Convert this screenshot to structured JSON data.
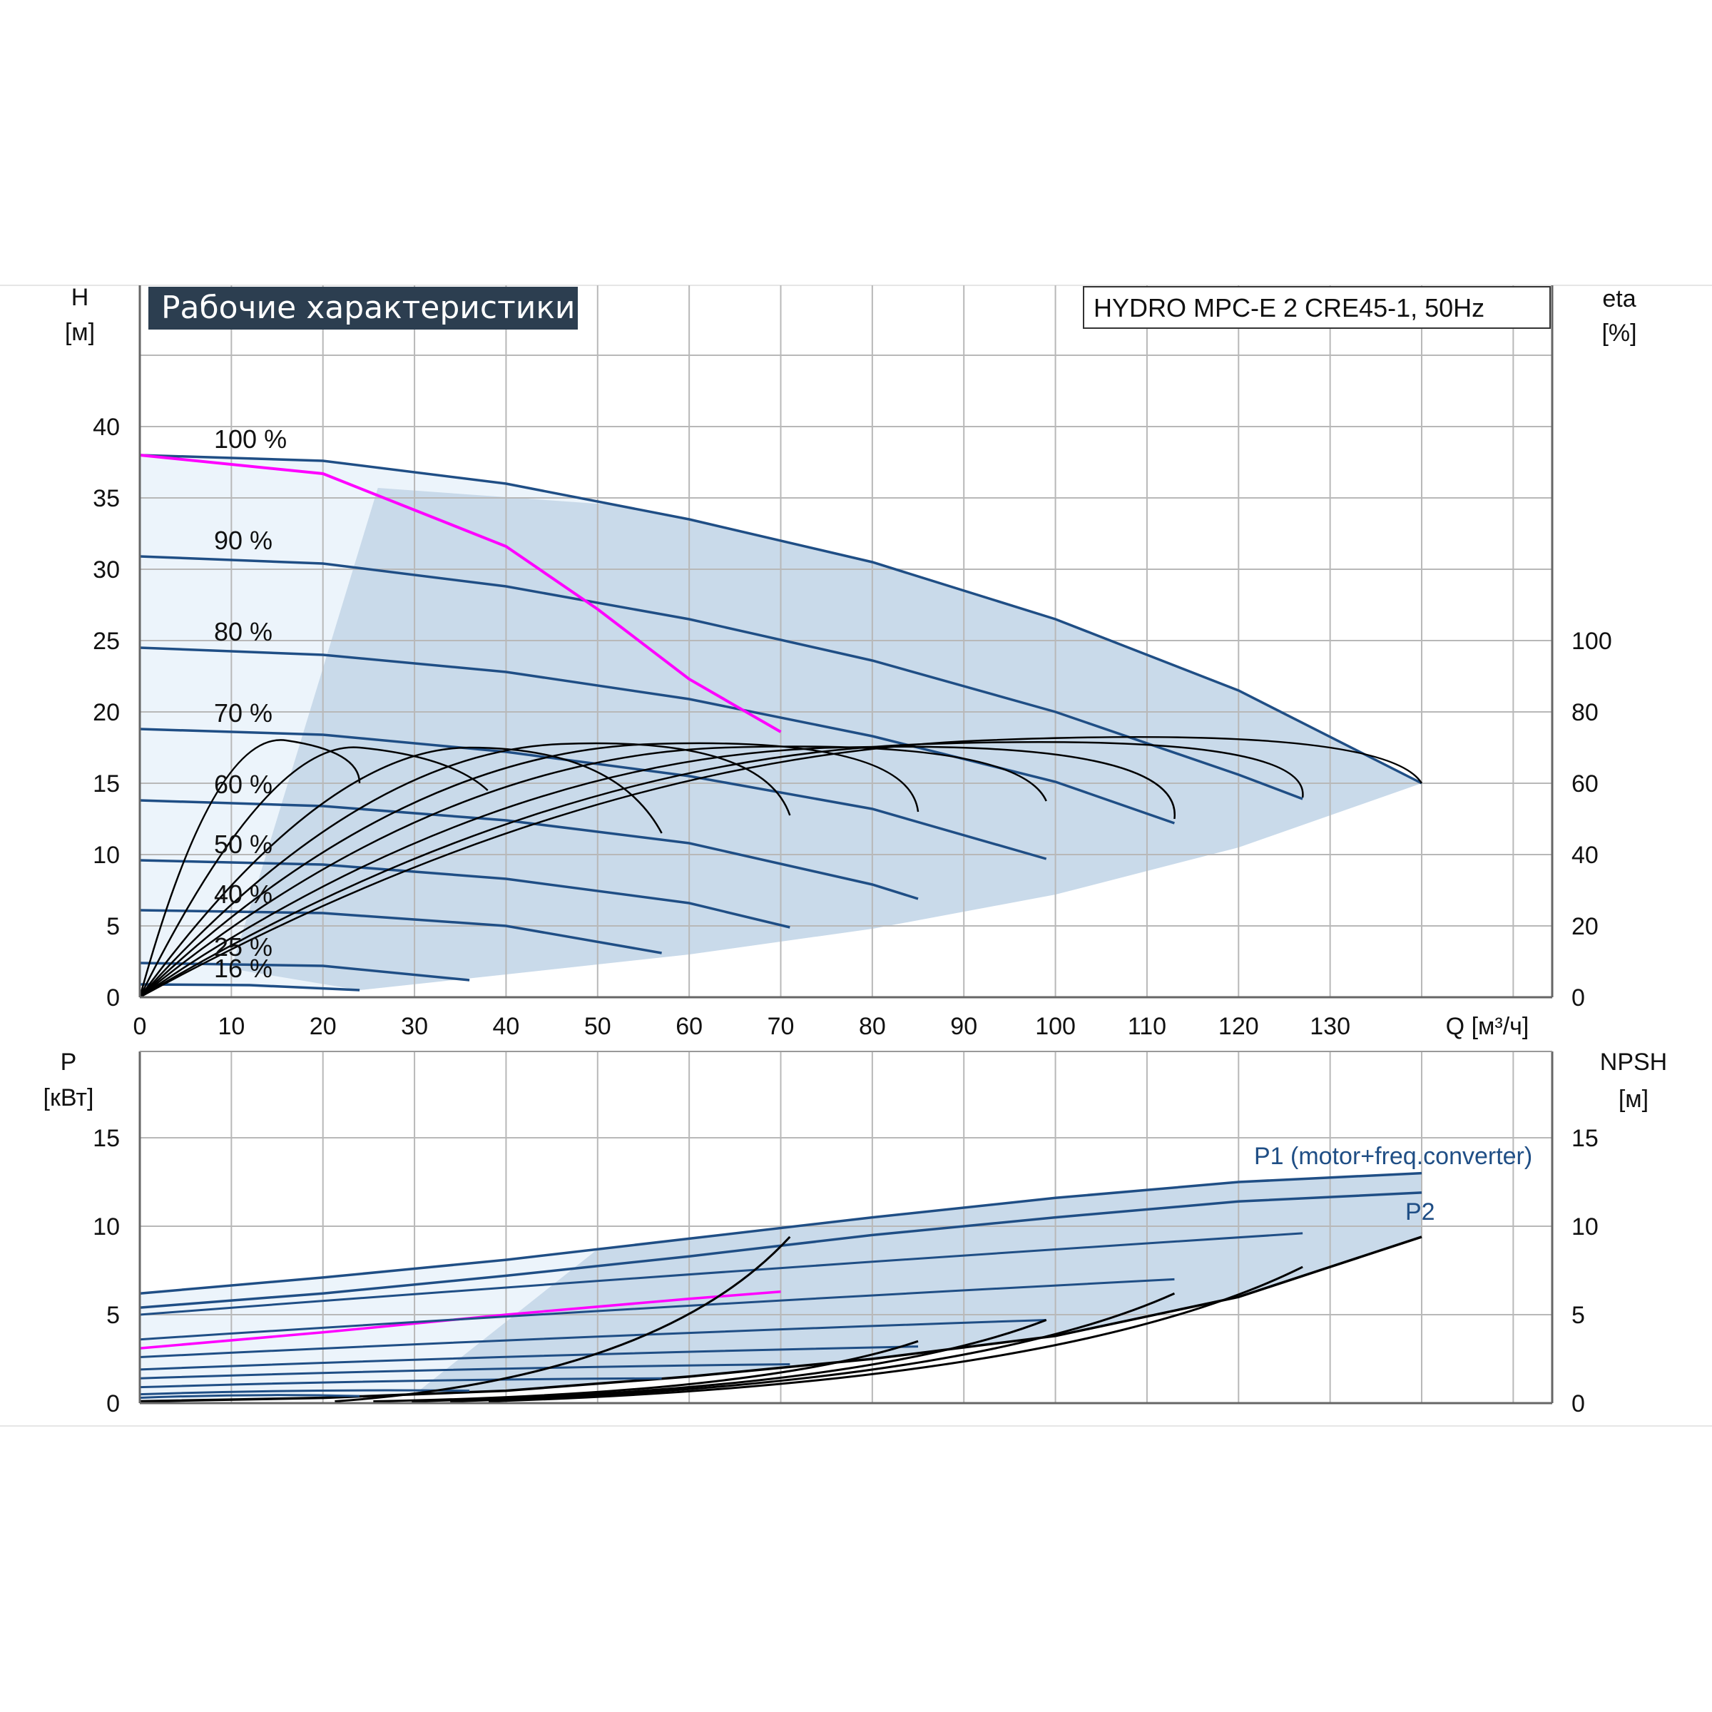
{
  "title": "Рабочие характеристики",
  "model": "HYDRO MPC-E 2 CRE45-1, 50Hz",
  "colors": {
    "pump_curve": "#1f4e85",
    "eff_curve": "#000000",
    "highlight": "#ff00ff",
    "region_fill": "#c9daea",
    "region_light": "#ecf4fb",
    "grid": "#b8b8b8",
    "title_bg": "#2c3e50"
  },
  "upper_axes": {
    "left_label_line1": "H",
    "left_label_line2": "[м]",
    "right_label_line1": "eta",
    "right_label_line2": "[%]",
    "x_label": "Q [м³/ч]",
    "x_ticks": [
      "0",
      "10",
      "20",
      "30",
      "40",
      "50",
      "60",
      "70",
      "80",
      "90",
      "100",
      "110",
      "120",
      "130"
    ],
    "y_ticks": [
      "0",
      "5",
      "10",
      "15",
      "20",
      "25",
      "30",
      "35",
      "40"
    ],
    "eta_ticks": [
      "0",
      "20",
      "40",
      "60",
      "80",
      "100"
    ]
  },
  "lower_axes": {
    "left_label_line1": "P",
    "left_label_line2": "[кВт]",
    "right_label_line1": "NPSH",
    "right_label_line2": "[м]",
    "y_ticks": [
      "0",
      "5",
      "10",
      "15"
    ],
    "npsh_ticks": [
      "0",
      "5",
      "10",
      "15"
    ],
    "p1_label": "P1 (motor+freq.converter)",
    "p2_label": "P2"
  },
  "speed_labels": [
    "100 %",
    "90 %",
    "80 %",
    "70 %",
    "60 %",
    "50 %",
    "40 %",
    "25 %",
    "16 %"
  ],
  "chart_data": [
    {
      "type": "line",
      "title": "Рабочие характеристики",
      "xlabel": "Q [м³/ч]",
      "ylabel": "H [м]",
      "y2label": "eta [%]",
      "xlim": [
        0,
        140
      ],
      "ylim": [
        0,
        45
      ],
      "y2lim": [
        0,
        135
      ],
      "grid": true,
      "series": [
        {
          "name": "100 %",
          "x": [
            0,
            20,
            40,
            60,
            80,
            100,
            120,
            140
          ],
          "y": [
            38,
            37.6,
            36,
            33.5,
            30.5,
            26.5,
            21.5,
            15
          ]
        },
        {
          "name": "90 %",
          "x": [
            0,
            20,
            40,
            60,
            80,
            100,
            120,
            127
          ],
          "y": [
            30.9,
            30.4,
            28.8,
            26.5,
            23.6,
            20,
            15.6,
            13.9
          ]
        },
        {
          "name": "80 %",
          "x": [
            0,
            20,
            40,
            60,
            80,
            100,
            113
          ],
          "y": [
            24.5,
            24,
            22.8,
            20.9,
            18.3,
            15.1,
            12.2
          ]
        },
        {
          "name": "70 %",
          "x": [
            0,
            20,
            40,
            60,
            80,
            99
          ],
          "y": [
            18.8,
            18.4,
            17.2,
            15.5,
            13.2,
            9.7
          ]
        },
        {
          "name": "60 %",
          "x": [
            0,
            20,
            40,
            60,
            80,
            85
          ],
          "y": [
            13.8,
            13.4,
            12.4,
            10.8,
            7.9,
            6.9
          ]
        },
        {
          "name": "50 %",
          "x": [
            0,
            20,
            40,
            60,
            71
          ],
          "y": [
            9.6,
            9.3,
            8.3,
            6.6,
            4.9
          ]
        },
        {
          "name": "40 %",
          "x": [
            0,
            20,
            40,
            57
          ],
          "y": [
            6.1,
            5.9,
            5.0,
            3.1
          ]
        },
        {
          "name": "25 %",
          "x": [
            0,
            20,
            36
          ],
          "y": [
            2.4,
            2.2,
            1.2
          ]
        },
        {
          "name": "16 %",
          "x": [
            0,
            12,
            24
          ],
          "y": [
            0.9,
            0.85,
            0.5
          ]
        },
        {
          "name": "",
          "x": [
            0,
            20,
            40,
            50,
            60,
            70
          ],
          "y": [
            38,
            36.7,
            31.6,
            27.2,
            22.3,
            18.6
          ]
        }
      ]
    },
    {
      "type": "line",
      "xlabel": "Q [м³/ч]",
      "ylabel": "P [кВт]",
      "y2label": "NPSH [м]",
      "xlim": [
        0,
        140
      ],
      "ylim": [
        0,
        20
      ],
      "y2lim": [
        0,
        20
      ],
      "grid": true,
      "series": [
        {
          "name": "P1 (motor+freq.converter)",
          "x": [
            0,
            20,
            40,
            60,
            80,
            100,
            120,
            140
          ],
          "y": [
            6.2,
            7.1,
            8.1,
            9.3,
            10.5,
            11.6,
            12.5,
            13.0
          ]
        },
        {
          "name": "P2",
          "x": [
            0,
            20,
            40,
            60,
            80,
            100,
            120,
            140
          ],
          "y": [
            5.4,
            6.2,
            7.2,
            8.3,
            9.5,
            10.5,
            11.4,
            11.9
          ]
        },
        {
          "name": "",
          "x": [
            0,
            20,
            40,
            60,
            70
          ],
          "y": [
            3.1,
            4.0,
            5.0,
            5.9,
            6.3
          ]
        },
        {
          "name": "",
          "x": [
            0,
            20,
            40,
            60,
            80,
            100,
            120,
            140
          ],
          "y": [
            0.1,
            0.3,
            0.7,
            1.5,
            2.5,
            3.8,
            6.0,
            9.4
          ]
        }
      ]
    }
  ]
}
